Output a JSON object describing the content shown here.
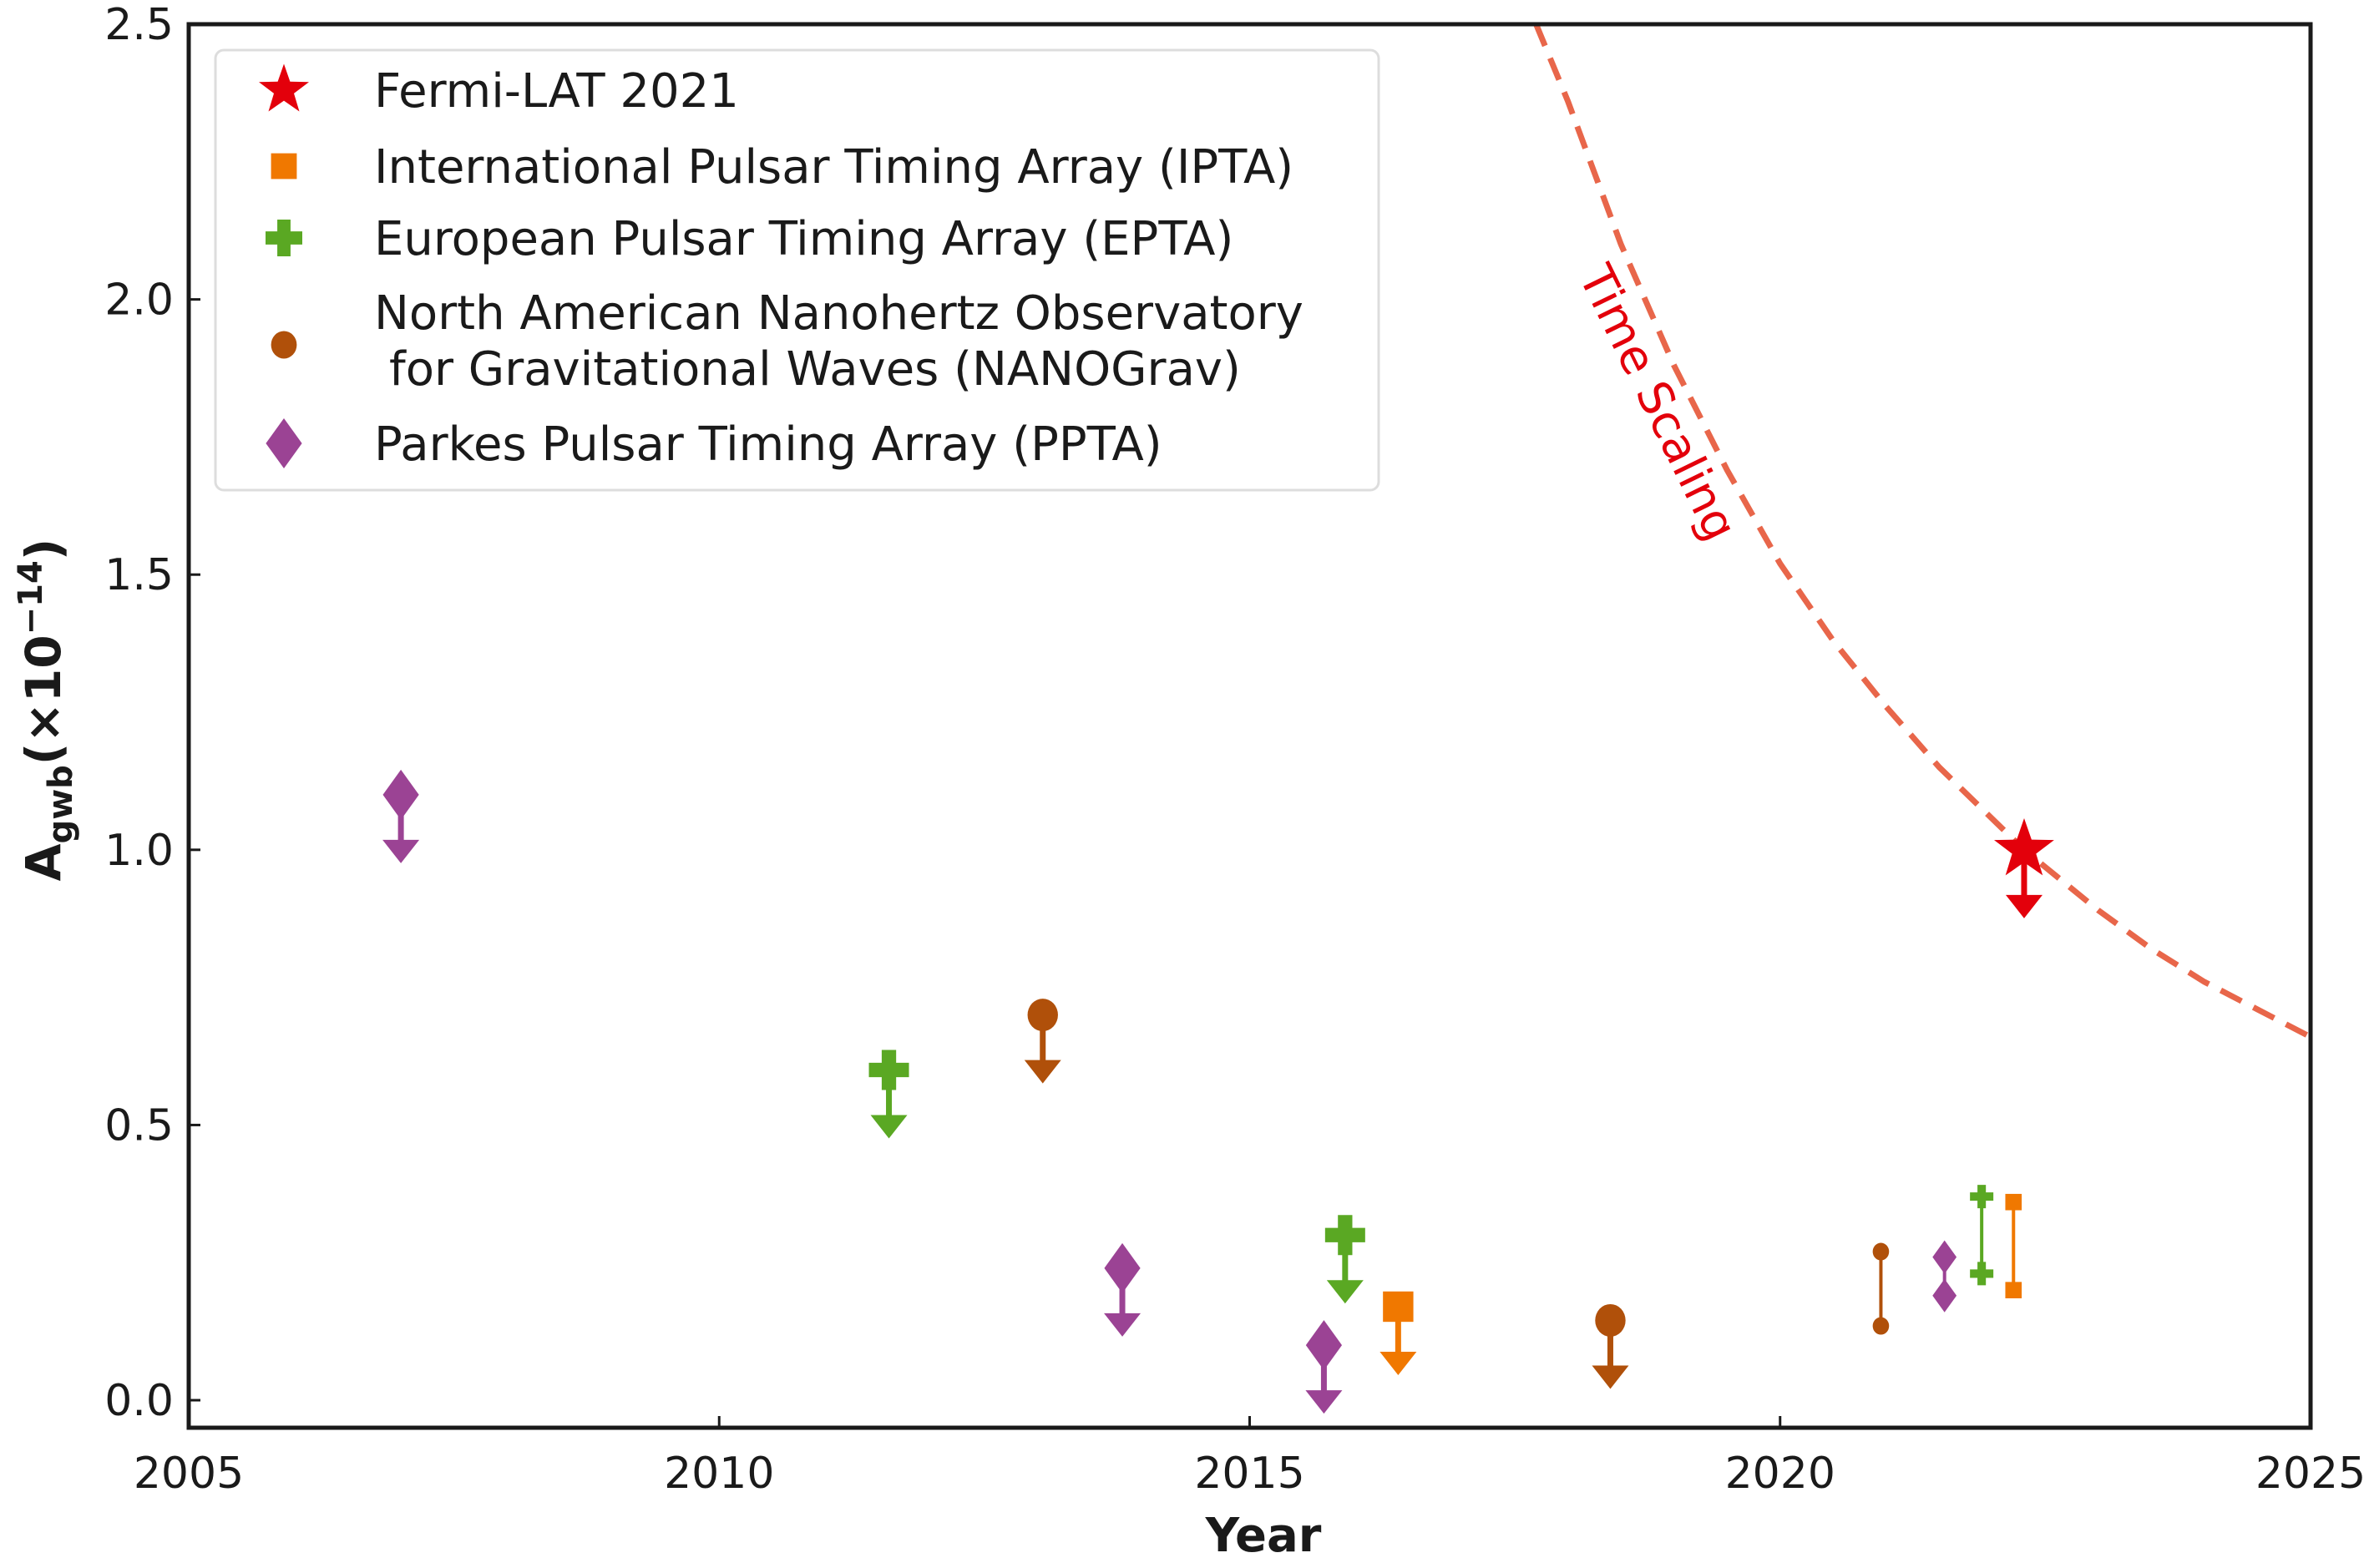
{
  "chart_data": {
    "type": "scatter",
    "xlabel": "Year",
    "ylabel": {
      "main": "A",
      "sub": "gwb",
      "paren_open": "(×10",
      "sup": "−14",
      "paren_close": ")"
    },
    "xlim": [
      2005,
      2025
    ],
    "ylim": [
      -0.05,
      2.5
    ],
    "xticks": [
      "2005",
      "2010",
      "2015",
      "2020",
      "2025"
    ],
    "yticks": [
      "0.0",
      "0.5",
      "1.0",
      "1.5",
      "2.0",
      "2.5"
    ],
    "grid": false,
    "legend_placement": "upper-left",
    "series": [
      {
        "name": "Fermi-LAT 2021",
        "color": "#e3000b",
        "marker": "star",
        "upper_limits": [
          {
            "x": 2022.3,
            "y": 1.0
          }
        ],
        "ranges": []
      },
      {
        "name": "International Pulsar Timing Array (IPTA)",
        "color": "#f07800",
        "marker": "square",
        "upper_limits": [
          {
            "x": 2016.4,
            "y": 0.17
          }
        ],
        "ranges": [
          {
            "x": 2022.2,
            "low": 0.2,
            "high": 0.36
          }
        ]
      },
      {
        "name": "European Pulsar Timing Array (EPTA)",
        "color": "#5aa823",
        "marker": "plus",
        "upper_limits": [
          {
            "x": 2011.6,
            "y": 0.6
          },
          {
            "x": 2015.9,
            "y": 0.3
          }
        ],
        "ranges": [
          {
            "x": 2021.9,
            "low": 0.23,
            "high": 0.37
          }
        ]
      },
      {
        "name": "North American Nanohertz Observatory\n for Gravitational Waves (NANOGrav)",
        "name_lines": [
          "North American Nanohertz Observatory",
          "for Gravitational Waves (NANOGrav)"
        ],
        "color": "#b0500a",
        "marker": "circle",
        "upper_limits": [
          {
            "x": 2013.05,
            "y": 0.7
          },
          {
            "x": 2018.4,
            "y": 0.145
          }
        ],
        "ranges": [
          {
            "x": 2020.95,
            "low": 0.135,
            "high": 0.27
          }
        ]
      },
      {
        "name": "Parkes Pulsar Timing Array (PPTA)",
        "color": "#9b4394",
        "marker": "diamond",
        "upper_limits": [
          {
            "x": 2007.0,
            "y": 1.1
          },
          {
            "x": 2013.8,
            "y": 0.24
          },
          {
            "x": 2015.7,
            "y": 0.1
          }
        ],
        "ranges": [
          {
            "x": 2021.55,
            "low": 0.19,
            "high": 0.26
          }
        ]
      }
    ],
    "curve": {
      "label": "Time Scaling",
      "color": "#e8664a",
      "label_color": "#e3000b",
      "style": "dashed",
      "x": [
        2017.7,
        2018,
        2018.5,
        2019,
        2019.5,
        2020,
        2020.5,
        2021,
        2021.5,
        2022.3,
        2023,
        2023.5,
        2024,
        2024.5,
        2025
      ],
      "y": [
        2.52,
        2.36,
        2.1,
        1.88,
        1.69,
        1.52,
        1.38,
        1.26,
        1.15,
        1.0,
        0.89,
        0.82,
        0.76,
        0.71,
        0.66
      ]
    }
  }
}
